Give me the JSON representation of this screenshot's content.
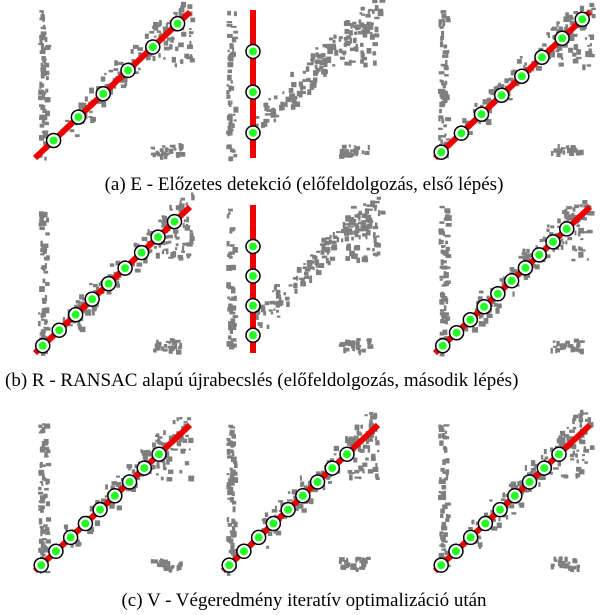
{
  "captions": [
    "(a) E - Előzetes detekció (előfeldolgozás, első lépés)",
    "(b) R - RANSAC alapú újrabecslés (előfeldolgozás, második lépés)",
    "(c) V - Végeredmény iteratív optimalizáció után"
  ]
}
